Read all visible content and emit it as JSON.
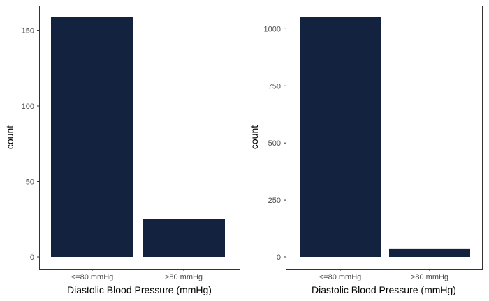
{
  "chart_data": [
    {
      "type": "bar",
      "categories": [
        "<=80 mmHg",
        ">80 mmHg"
      ],
      "values": [
        159,
        25
      ],
      "xlabel": "Diastolic Blood Pressure (mmHg)",
      "ylabel": "count",
      "ylim": [
        0,
        159
      ],
      "yticks": [
        0,
        50,
        100,
        150
      ],
      "grid": false,
      "bar_color": "#13233f"
    },
    {
      "type": "bar",
      "categories": [
        "<=80 mmHg",
        ">80 mmHg"
      ],
      "values": [
        1053,
        37
      ],
      "xlabel": "Diastolic Blood Pressure (mmHg)",
      "ylabel": "count",
      "ylim": [
        0,
        1053
      ],
      "yticks": [
        0,
        250,
        500,
        750,
        1000
      ],
      "grid": false,
      "bar_color": "#13233f"
    }
  ]
}
